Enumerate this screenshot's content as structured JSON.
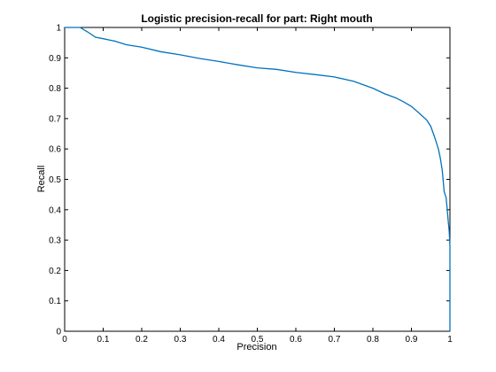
{
  "chart_data": {
    "type": "line",
    "title": "Logistic precision-recall for part: Right mouth",
    "xlabel": "Precision",
    "ylabel": "Recall",
    "xlim": [
      0,
      1
    ],
    "ylim": [
      0,
      1
    ],
    "xticks": [
      "0",
      "0.1",
      "0.2",
      "0.3",
      "0.4",
      "0.5",
      "0.6",
      "0.7",
      "0.8",
      "0.9",
      "1"
    ],
    "yticks": [
      "0",
      "0.1",
      "0.2",
      "0.3",
      "0.4",
      "0.5",
      "0.6",
      "0.7",
      "0.8",
      "0.9",
      "1"
    ],
    "grid": false,
    "series": [
      {
        "color": "#0072BD",
        "x": [
          0.0,
          0.04,
          0.06,
          0.08,
          0.1,
          0.13,
          0.16,
          0.2,
          0.25,
          0.3,
          0.35,
          0.4,
          0.45,
          0.5,
          0.55,
          0.6,
          0.65,
          0.7,
          0.75,
          0.8,
          0.83,
          0.86,
          0.88,
          0.9,
          0.92,
          0.94,
          0.95,
          0.96,
          0.97,
          0.975,
          0.98,
          0.985,
          0.99,
          0.993,
          0.995,
          0.998,
          1.0,
          1.0
        ],
        "y": [
          1.0,
          1.0,
          0.985,
          0.968,
          0.963,
          0.955,
          0.943,
          0.935,
          0.92,
          0.91,
          0.898,
          0.888,
          0.877,
          0.867,
          0.862,
          0.852,
          0.845,
          0.837,
          0.823,
          0.8,
          0.782,
          0.768,
          0.755,
          0.74,
          0.718,
          0.695,
          0.675,
          0.64,
          0.6,
          0.57,
          0.53,
          0.46,
          0.44,
          0.4,
          0.37,
          0.33,
          0.28,
          0.0
        ]
      }
    ]
  }
}
